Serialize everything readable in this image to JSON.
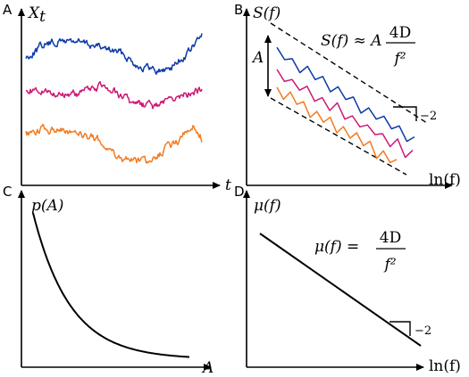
{
  "colors": {
    "blue": "#0b3aa6",
    "magenta": "#cc1874",
    "orange": "#f47b20",
    "axis": "#000000"
  },
  "panels": {
    "a": {
      "letter": "A",
      "ylabel_main": "X",
      "ylabel_sub": "t",
      "xlabel": "t"
    },
    "b": {
      "letter": "B",
      "ylabel": "S(f)",
      "xlabel": "ln(f)",
      "amp_label": "A",
      "formula_lhs": "S(f) ≈ A",
      "formula_num": "4D",
      "formula_den": "f²",
      "slope_label": "−2"
    },
    "c": {
      "letter": "C",
      "ylabel": "p(A)",
      "xlabel": "A"
    },
    "d": {
      "letter": "D",
      "ylabel": "μ(f)",
      "xlabel": "ln(f)",
      "formula_lhs": "μ(f) =",
      "formula_num": "4D",
      "formula_den": "f²",
      "slope_label": "−2"
    }
  }
}
